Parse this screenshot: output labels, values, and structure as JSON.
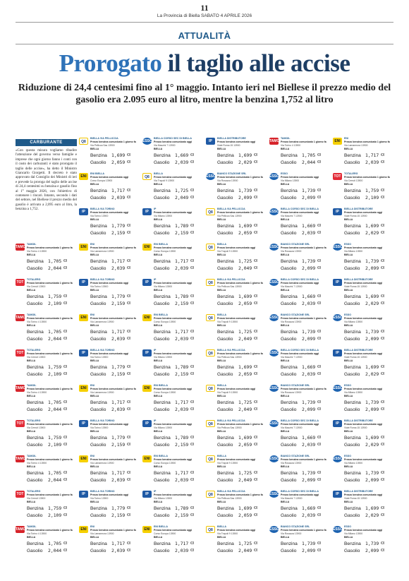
{
  "masthead": {
    "page_number": "11",
    "dateline": "La Provincia di Biella SABATO 4 APRILE 2026"
  },
  "section": "ATTUALITÀ",
  "headline": {
    "part1": "Prorogato",
    "part2": "il taglio alle accise"
  },
  "deck": "Riduzione di 24,4 centesimi fino al 1° maggio. Intanto ieri nel Biellese il prezzo medio del gasolio era 2.095 euro al litro, mentre la benzina 1,752 al litro",
  "sidebar": {
    "heading": "CARBURANTE",
    "text": "«Con questa misura vogliamo ribadire l'attenzione del governo verso famiglie e imprese che ogni giorno fanno i conti con il costo dei carburanti: è stato prorogato il taglio delle accise», ha detto il Ministro Giancarlo Giorgetti. Il decreto è stato approvato dal Consiglio dei Ministri di ieri e prevede la proroga del taglio delle accise di 24,4 centesimi su benzina e gasolio fino al 1° maggio 2026, con l'obiettivo di contenere i rincari. Intanto, secondo i dati del settore, nel Biellese il prezzo medio del gasolio è arrivato a 2,095 euro al litro, la benzina a 1,752."
  },
  "stations": [
    {
      "logo": "Q8",
      "name": "BIELLA VIA PELLICCIA",
      "line": "Prezzo benzina comunicato 1 giorno fa",
      "addr": "Via Pellicca Sas 13900",
      "city": "BIELLA",
      "benzina": "1,699",
      "gasolio": "2,059"
    },
    {
      "logo": "ESSO",
      "name": "BIELLA CORSO SEC DI BIELLA",
      "line": "Prezzo benzina comunicato oggi",
      "addr": "Via Mazzini 7 13900",
      "city": "BIELLA",
      "benzina": "1,669",
      "gasolio": "2,039"
    },
    {
      "logo": "IP",
      "name": "BIELLA DISTRIBUTORE",
      "line": "Prezzo benzina comunicato oggi",
      "addr": "Viale Roma 15 13900",
      "city": "BIELLA",
      "benzina": "1,699",
      "gasolio": "2,029"
    },
    {
      "logo": "TAMOIL",
      "name": "TAMOIL",
      "line": "Prezzo benzina comunicato 1 giorno fa",
      "addr": "Via Torino 4 13900",
      "city": "BIELLA",
      "benzina": "1,705",
      "gasolio": "2,044"
    },
    {
      "logo": "ENI",
      "name": "ENI",
      "line": "Prezzo benzina comunicato 1 giorno fa",
      "addr": "Via Lamarmora 13900",
      "city": "BIELLA",
      "benzina": "1,717",
      "gasolio": "2,039"
    },
    {
      "logo": "ENI",
      "name": "ENI BIELLA",
      "line": "Prezzo benzina comunicato oggi",
      "addr": "Corso Europa 13900",
      "city": "BIELLA",
      "benzina": "1,717",
      "gasolio": "2,039"
    },
    {
      "logo": "Q8",
      "name": "BIELLA",
      "line": "Prezzo benzina comunicato oggi",
      "addr": "Via Trapoli 9 13900",
      "city": "BIELLA",
      "benzina": "1,725",
      "gasolio": "2,049"
    },
    {
      "logo": "ESSO",
      "name": "BIANCO STAZIONE SRL",
      "line": "Prezzo benzina comunicato 1 giorno fa",
      "addr": "Via Rosazza 13900",
      "city": "BIELLA",
      "benzina": "1,739",
      "gasolio": "2,099"
    },
    {
      "logo": "ESSO",
      "name": "ESSO",
      "line": "Prezzo benzina comunicato oggi",
      "addr": "Via Milano 13900",
      "city": "BIELLA",
      "benzina": "1,739",
      "gasolio": "2,099"
    },
    {
      "logo": "TOT",
      "name": "TOTALERG",
      "line": "Prezzo benzina comunicato 1 giorno fa",
      "addr": "Via Cerruti 13900",
      "city": "BIELLA",
      "benzina": "1,759",
      "gasolio": "2,109"
    },
    {
      "logo": "IP",
      "name": "BIELLA VIA TORINO",
      "line": "Prezzo benzina comunicato oggi",
      "addr": "Via Torino 13900",
      "city": "BIELLA",
      "benzina": "1,779",
      "gasolio": "2,159"
    },
    {
      "logo": "IP",
      "name": "IP",
      "line": "Prezzo benzina comunicato oggi",
      "addr": "Via Milano 13900",
      "city": "BIELLA",
      "benzina": "1,789",
      "gasolio": "2,159"
    }
  ],
  "labels": {
    "benzina": "Benzina",
    "gasolio": "Gasolio",
    "unit": "€/l"
  }
}
